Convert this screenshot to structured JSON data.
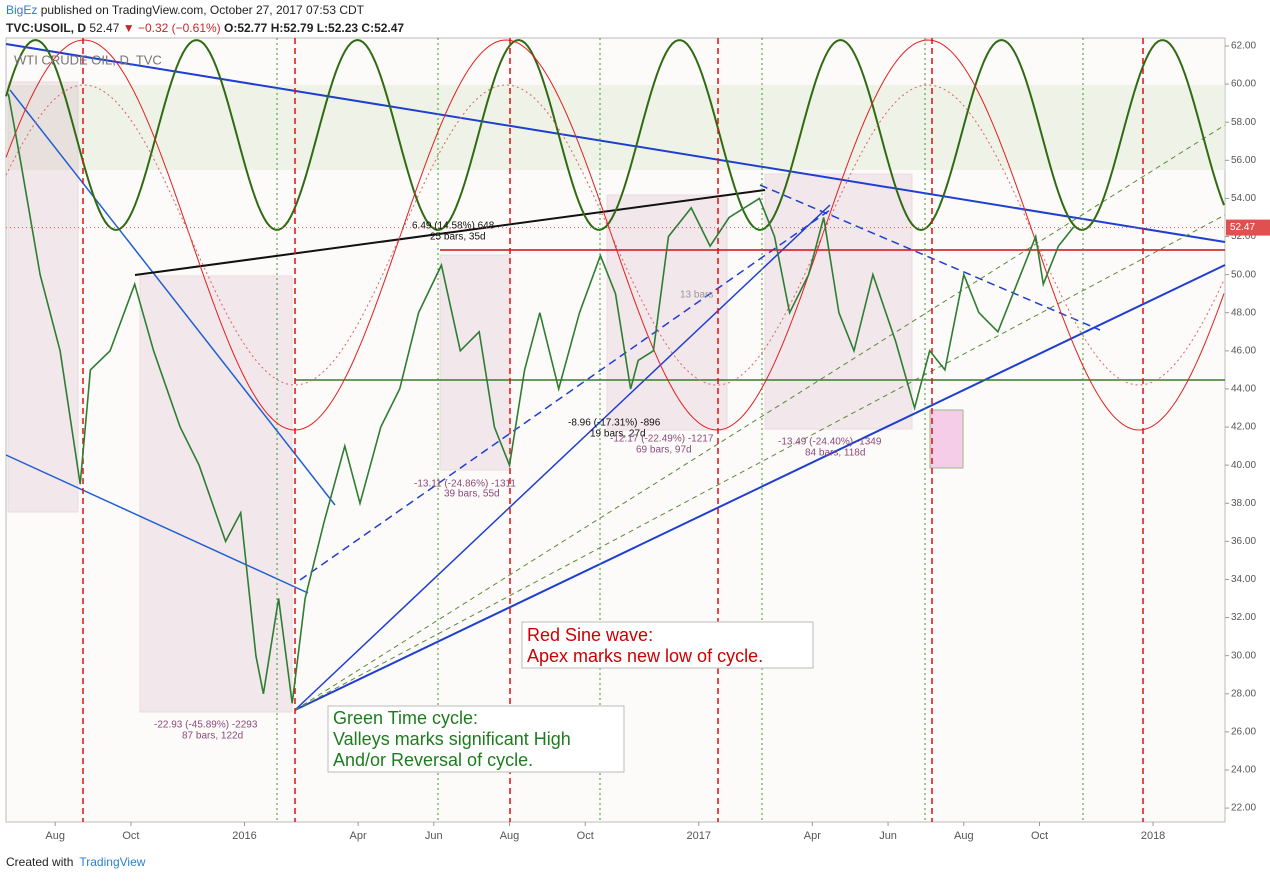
{
  "header": {
    "author": "BigEz",
    "published": "published on TradingView.com, October 27, 2017 07:53 CDT",
    "symbol": "TVC:USOIL, D",
    "last": "52.47",
    "change": "▼ −0.32 (−0.61%)",
    "ohlc": "O:52.77 H:52.79 L:52.23 C:52.47"
  },
  "chart_data": {
    "type": "line",
    "title": "WTI CRUDE OIL, D, TVC",
    "color": "#2e7d32",
    "x": [
      -0.24,
      0.08,
      0.6,
      1.13,
      1.66,
      1.93,
      2.45,
      3.1,
      3.6,
      4.3,
      4.8,
      5.5,
      5.9,
      6.3,
      6.5,
      6.9,
      7.26,
      7.6,
      8.1,
      8.65,
      9.05,
      9.6,
      10.1,
      10.6,
      11.2,
      11.7,
      12.2,
      12.6,
      13.0,
      13.4,
      13.8,
      14.3,
      14.85,
      15.4,
      15.8,
      16.2,
      16.4,
      16.8,
      17.2,
      17.8,
      18.3,
      18.8,
      19.6,
      20.0,
      20.4,
      20.9,
      21.3,
      21.7,
      22.1,
      22.6,
      23.2,
      23.7,
      24.1,
      24.5,
      25.0,
      25.4,
      25.9,
      26.5,
      26.9,
      27.1,
      27.5,
      27.9
    ],
    "values": [
      59.5,
      56,
      50,
      46,
      39,
      45,
      46,
      49.5,
      46,
      42,
      40,
      36,
      37.5,
      30,
      28,
      33,
      27.5,
      33,
      37,
      41,
      38,
      42,
      44,
      48,
      50.5,
      46,
      47,
      42,
      40,
      45,
      48,
      44,
      48,
      51,
      49,
      44,
      45.5,
      46,
      52,
      53.5,
      51.5,
      53,
      54,
      52,
      48,
      50,
      53,
      48,
      46,
      50,
      46.5,
      43,
      46,
      45,
      50,
      48,
      47,
      50,
      52,
      49.5,
      51.5,
      52.5
    ],
    "last_price": 52.47,
    "xlim": [
      -0.3,
      31.9
    ],
    "ylim": [
      21.27,
      62.42
    ],
    "xticks": [
      {
        "value": 1,
        "label": "Aug"
      },
      {
        "value": 3,
        "label": "Oct"
      },
      {
        "value": 6,
        "label": "2016"
      },
      {
        "value": 9,
        "label": "Apr"
      },
      {
        "value": 11,
        "label": "Jun"
      },
      {
        "value": 13,
        "label": "Aug"
      },
      {
        "value": 15,
        "label": "Oct"
      },
      {
        "value": 18,
        "label": "2017"
      },
      {
        "value": 21,
        "label": "Apr"
      },
      {
        "value": 23,
        "label": "Jun"
      },
      {
        "value": 25,
        "label": "Aug"
      },
      {
        "value": 27,
        "label": "Oct"
      },
      {
        "value": 30,
        "label": "2018"
      }
    ],
    "yticks": [
      {
        "value": 22,
        "label": "22.00"
      },
      {
        "value": 24,
        "label": "24.00"
      },
      {
        "value": 26,
        "label": "26.00"
      },
      {
        "value": 28,
        "label": "28.00"
      },
      {
        "value": 30,
        "label": "30.00"
      },
      {
        "value": 32,
        "label": "32.00"
      },
      {
        "value": 34,
        "label": "34.00"
      },
      {
        "value": 36,
        "label": "36.00"
      },
      {
        "value": 38,
        "label": "38.00"
      },
      {
        "value": 40,
        "label": "40.00"
      },
      {
        "value": 42,
        "label": "42.00"
      },
      {
        "value": 44,
        "label": "44.00"
      },
      {
        "value": 46,
        "label": "46.00"
      },
      {
        "value": 48,
        "label": "48.00"
      },
      {
        "value": 50,
        "label": "50.00"
      },
      {
        "value": 52,
        "label": "52.00"
      },
      {
        "value": 54,
        "label": "54.00"
      },
      {
        "value": 56,
        "label": "56.00"
      },
      {
        "value": 58,
        "label": "58.00"
      },
      {
        "value": 60,
        "label": "60.00"
      },
      {
        "value": 62,
        "label": "62.00"
      }
    ],
    "grid": false,
    "annotations": [
      "Red Sine wave:",
      "Apex marks new low of cycle.",
      "Green Time cycle:",
      "Valleys marks significant High",
      "And/or Reversal of cycle.",
      "6.49 (14.58%) 648",
      "25 bars, 35d",
      "-13.11 (-24.86%) -1311",
      "39 bars, 55d",
      "-8.96 (-17.31%) -896",
      "19 bars, 27d",
      "-12.17 (-22.49%) -1217",
      "69 bars, 97d",
      "-13.49 (-24.40%) -1349",
      "84 bars, 118d",
      "-22.93 (-45.89%) -2293",
      "87 bars, 122d",
      "13 bars"
    ]
  },
  "footer": {
    "created": "Created with",
    "brand": "TradingView"
  }
}
